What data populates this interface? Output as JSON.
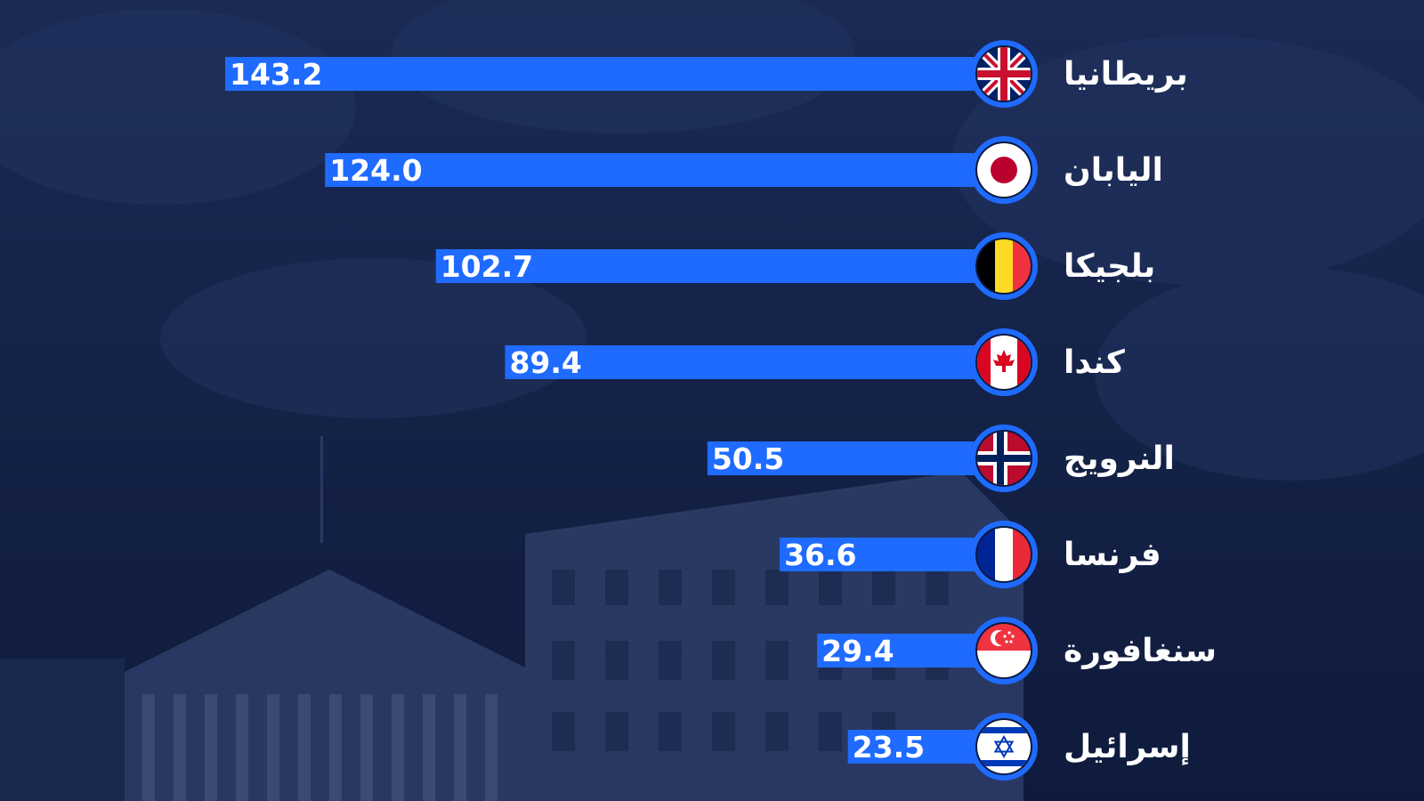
{
  "chart_data": {
    "type": "bar",
    "orientation": "horizontal",
    "categories": [
      "بريطانيا",
      "اليابان",
      "بلجيكا",
      "كندا",
      "النرويج",
      "فرنسا",
      "سنغافورة",
      "إسرائيل"
    ],
    "values": [
      143.2,
      124.0,
      102.7,
      89.4,
      50.5,
      36.6,
      29.4,
      23.5
    ],
    "value_labels": [
      "143.2",
      "124.0",
      "102.7",
      "89.4",
      "50.5",
      "36.6",
      "29.4",
      "23.5"
    ],
    "flags": [
      "uk-flag",
      "japan-flag",
      "belgium-flag",
      "canada-flag",
      "norway-flag",
      "france-flag",
      "singapore-flag",
      "israel-flag"
    ],
    "bar_color": "#1f6bff",
    "background_color": "#142349",
    "xlim": [
      0,
      143.2
    ],
    "grid": false,
    "legend": "none"
  }
}
